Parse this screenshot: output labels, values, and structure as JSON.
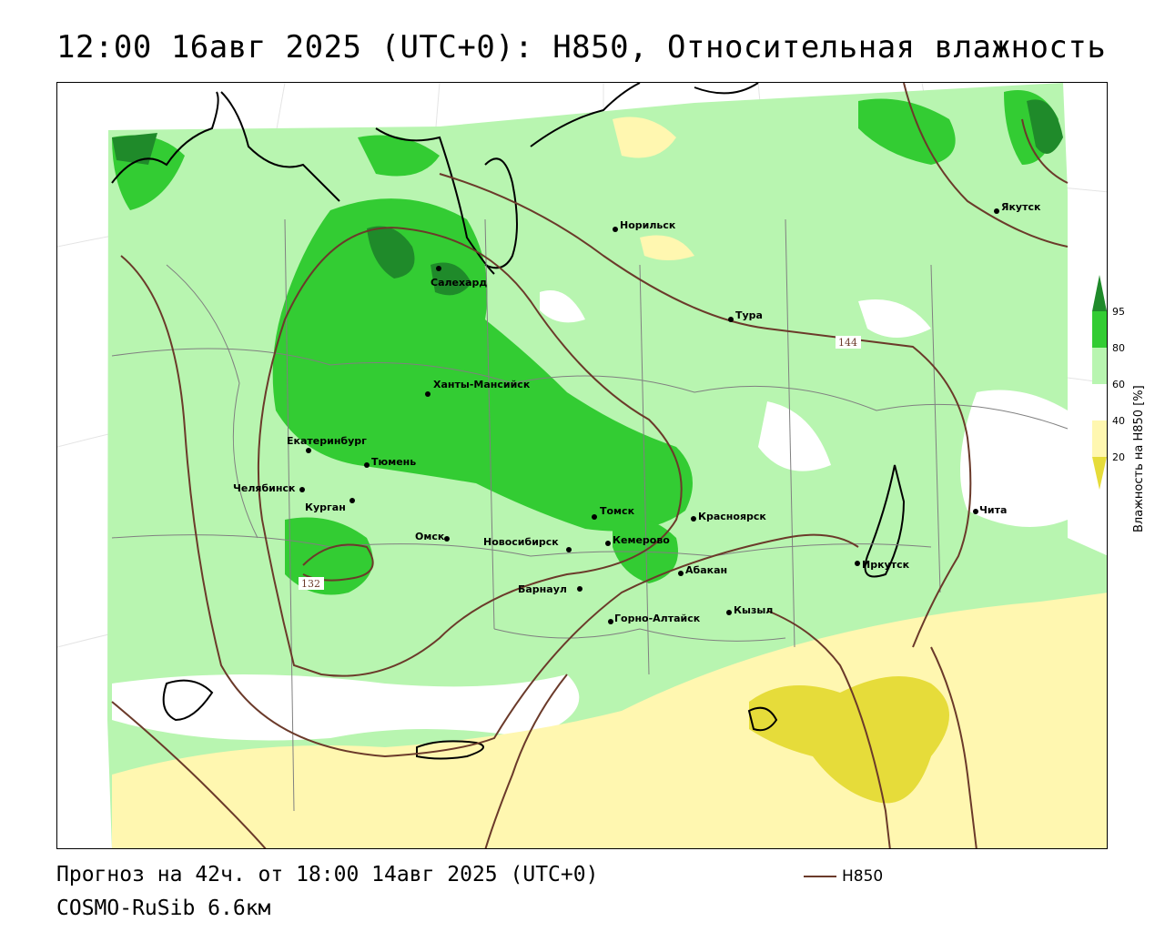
{
  "title": "12:00 16авг 2025 (UTC+0): H850, Относительная влажность",
  "footer": {
    "forecast": "Прогноз на 42ч. от 18:00 14авг 2025 (UTC+0)",
    "model": "COSMO-RuSib 6.6км"
  },
  "line_legend": {
    "label": "H850",
    "color": "#6b3a2a"
  },
  "colorbar": {
    "title": "Влажность на H850 [%]",
    "ticks": [
      "95",
      "80",
      "60",
      "40",
      "20"
    ],
    "colors": {
      "above95": "#1f8a2a",
      "c80_95": "#33cc33",
      "c60_80": "#b8f5b0",
      "c40_60": "#ffffff",
      "c20_40": "#fff7b0",
      "below20": "#e6dc3a"
    }
  },
  "contour_labels": [
    "144",
    "132"
  ],
  "cities": [
    {
      "name": "Якутск"
    },
    {
      "name": "Норильск"
    },
    {
      "name": "Салехард"
    },
    {
      "name": "Тура"
    },
    {
      "name": "Ханты-Мансийск"
    },
    {
      "name": "Екатеринбург"
    },
    {
      "name": "Тюмень"
    },
    {
      "name": "Челябинск"
    },
    {
      "name": "Курган"
    },
    {
      "name": "Омск"
    },
    {
      "name": "Новосибирск"
    },
    {
      "name": "Томск"
    },
    {
      "name": "Кемерово"
    },
    {
      "name": "Красноярск"
    },
    {
      "name": "Абакан"
    },
    {
      "name": "Барнаул"
    },
    {
      "name": "Горно-Алтайск"
    },
    {
      "name": "Кызыл"
    },
    {
      "name": "Иркутск"
    },
    {
      "name": "Чита"
    }
  ]
}
